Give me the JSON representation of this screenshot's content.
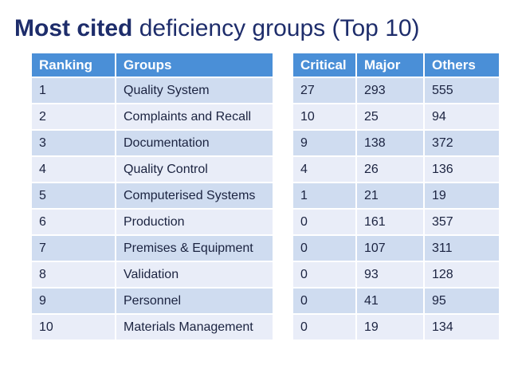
{
  "title": {
    "bold": "Most cited",
    "regular": " deficiency groups (Top 10)"
  },
  "chart_data": {
    "type": "table",
    "title": "Most cited deficiency groups (Top 10)",
    "columns": [
      "Ranking",
      "Groups",
      "Critical",
      "Major",
      "Others"
    ],
    "rows": [
      [
        "1",
        "Quality System",
        "27",
        "293",
        "555"
      ],
      [
        "2",
        "Complaints and Recall",
        "10",
        "25",
        "94"
      ],
      [
        "3",
        "Documentation",
        "9",
        "138",
        "372"
      ],
      [
        "4",
        "Quality Control",
        "4",
        "26",
        "136"
      ],
      [
        "5",
        "Computerised Systems",
        "1",
        "21",
        "19"
      ],
      [
        "6",
        "Production",
        "0",
        "161",
        "357"
      ],
      [
        "7",
        "Premises & Equipment",
        "0",
        "107",
        "311"
      ],
      [
        "8",
        "Validation",
        "0",
        "93",
        "128"
      ],
      [
        "9",
        "Personnel",
        "0",
        "41",
        "95"
      ],
      [
        "10",
        "Materials Management",
        "0",
        "19",
        "134"
      ]
    ],
    "layout": {
      "legend": false,
      "banded_rows": true,
      "split_tables": [
        "Ranking|Groups",
        "Critical|Major|Others"
      ]
    }
  },
  "colors": {
    "header_background": "#4a8fd7",
    "header_text": "#ffffff",
    "row_odd": "#cfdcf0",
    "row_even": "#e9edf8",
    "cell_text": "#1b2340",
    "title_text": "#1e2d6b",
    "page_background": "#ffffff"
  }
}
